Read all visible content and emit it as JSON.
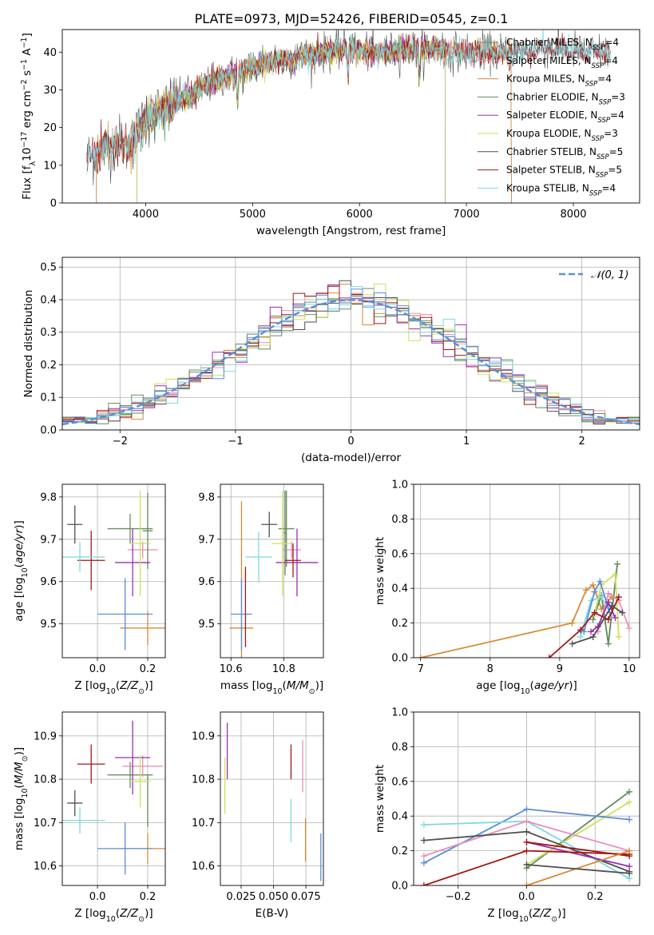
{
  "title": "PLATE=0973, MJD=52426, FIBERID=0545, z=0.1",
  "colors": {
    "Chabrier MILES": "#6b8e62",
    "Salpeter MILES": "#e88fbf",
    "Kroupa MILES": "#d98a33",
    "Chabrier ELODIE": "#5e8a5e",
    "Salpeter ELODIE": "#9b2fb0",
    "Kroupa ELODIE": "#cfe05a",
    "Chabrier STELIB": "#505050",
    "Salpeter STELIB": "#a01818",
    "Kroupa STELIB": "#7fd8df"
  },
  "chart_data": [
    {
      "id": "spectrum",
      "type": "line",
      "title": "PLATE=0973, MJD=52426, FIBERID=0545, z=0.1",
      "xlabel": "wavelength [Angstrom, rest frame]",
      "ylabel": "Flux [f_λ10^-17 erg cm^-2 s^-1 A^-1]",
      "xlim": [
        3220,
        8620
      ],
      "ylim": [
        0,
        46
      ],
      "xticks": [
        "4000",
        "5000",
        "6000",
        "7000",
        "8000"
      ],
      "yticks": [
        "0",
        "10",
        "20",
        "30",
        "40"
      ],
      "grid": false,
      "legend_position": "upper right",
      "spectrum_shape": {
        "x": [
          3450,
          3550,
          3650,
          3750,
          3850,
          3950,
          4050,
          4150,
          4300,
          4500,
          4700,
          4900,
          5100,
          5300,
          5500,
          5700,
          5900,
          6100,
          6300,
          6500,
          6700,
          6900,
          7100,
          7300,
          7500,
          7700,
          7900,
          8100,
          8300
        ],
        "y": [
          12,
          13,
          15,
          16,
          15,
          20,
          23,
          25,
          27,
          30,
          33,
          35,
          37,
          38,
          39,
          40,
          41,
          40,
          40,
          41,
          41,
          40,
          40,
          40,
          40,
          41,
          41,
          40,
          40
        ]
      },
      "series": [
        {
          "name": "Chabrier MILES",
          "label_suffix": "=4",
          "start": 3540,
          "end": 7420
        },
        {
          "name": "Salpeter MILES",
          "label_suffix": "=4",
          "start": 3540,
          "end": 7420
        },
        {
          "name": "Kroupa MILES",
          "label_suffix": "=4",
          "start": 3540,
          "end": 7420
        },
        {
          "name": "Chabrier ELODIE",
          "label_suffix": "=3",
          "start": 3920,
          "end": 6800
        },
        {
          "name": "Salpeter ELODIE",
          "label_suffix": "=4",
          "start": 3920,
          "end": 6800
        },
        {
          "name": "Kroupa ELODIE",
          "label_suffix": "=3",
          "start": 3920,
          "end": 6800
        },
        {
          "name": "Chabrier STELIB",
          "label_suffix": "=5",
          "start": 3450,
          "end": 8350
        },
        {
          "name": "Salpeter STELIB",
          "label_suffix": "=5",
          "start": 3450,
          "end": 8350
        },
        {
          "name": "Kroupa STELIB",
          "label_suffix": "=4",
          "start": 3450,
          "end": 8350
        }
      ]
    },
    {
      "id": "residuals",
      "type": "histogram",
      "xlabel": "(data-model)/error",
      "ylabel": "Normed distribution",
      "xlim": [
        -2.5,
        2.5
      ],
      "ylim": [
        0,
        0.53
      ],
      "xticks": [
        "−2",
        "−1",
        "0",
        "1",
        "2"
      ],
      "yticks": [
        "0.0",
        "0.1",
        "0.2",
        "0.3",
        "0.4",
        "0.5"
      ],
      "grid": true,
      "legend": [
        {
          "name": "𝒩(0, 1)",
          "style": "dashed",
          "color": "#5b8fd6"
        }
      ],
      "bin_width": 0.1,
      "gaussian": {
        "mean": 0,
        "sigma": 1
      }
    },
    {
      "id": "age-vs-Z",
      "type": "errorbar",
      "xlabel": "Z [log10(Z/Z⊙)]",
      "ylabel": "age [log10(age/yr)]",
      "xlim": [
        -0.14,
        0.27
      ],
      "ylim": [
        9.42,
        9.83
      ],
      "xticks": [
        "0.0",
        "0.2"
      ],
      "yticks": [
        "9.5",
        "9.6",
        "9.7",
        "9.8"
      ],
      "points": [
        {
          "name": "Chabrier MILES",
          "x": 0.13,
          "xerr": 0.09,
          "y": 9.725,
          "yerr": 0.035
        },
        {
          "name": "Salpeter MILES",
          "x": 0.18,
          "xerr": 0.06,
          "y": 9.675,
          "yerr": 0.02
        },
        {
          "name": "Kroupa MILES",
          "x": 0.2,
          "xerr": 0.11,
          "y": 9.49,
          "yerr": 0.04
        },
        {
          "name": "Chabrier ELODIE",
          "x": 0.2,
          "xerr": 0.02,
          "y": 9.72,
          "yerr": 0.09
        },
        {
          "name": "Salpeter ELODIE",
          "x": 0.14,
          "xerr": 0.07,
          "y": 9.645,
          "yerr": 0.08
        },
        {
          "name": "Kroupa ELODIE",
          "x": 0.17,
          "xerr": 0.04,
          "y": 9.69,
          "yerr": 0.125
        },
        {
          "name": "Chabrier STELIB",
          "x": -0.09,
          "xerr": 0.03,
          "y": 9.735,
          "yerr": 0.045
        },
        {
          "name": "Salpeter STELIB",
          "x": -0.025,
          "xerr": 0.055,
          "y": 9.65,
          "yerr": 0.07
        },
        {
          "name": "Kroupa STELIB",
          "x": -0.07,
          "xerr": 0.1,
          "y": 9.658,
          "yerr": 0.035
        },
        {
          "name": "blue",
          "x": 0.11,
          "xerr": 0.11,
          "y": 9.523,
          "yerr": 0.085
        }
      ]
    },
    {
      "id": "age-vs-mass",
      "type": "errorbar",
      "xlabel": "mass [log10(M/M⊙)]",
      "ylabel": "",
      "xlim": [
        10.56,
        10.95
      ],
      "ylim": [
        9.42,
        9.83
      ],
      "xticks": [
        "10.6",
        "10.8"
      ],
      "yticks": [
        "9.5",
        "9.6",
        "9.7",
        "9.8"
      ],
      "points": [
        {
          "name": "Chabrier MILES",
          "x": 10.81,
          "xerr": 0.03,
          "y": 9.725,
          "yerr": 0.09
        },
        {
          "name": "Salpeter MILES",
          "x": 10.83,
          "xerr": 0.035,
          "y": 9.675,
          "yerr": 0.02
        },
        {
          "name": "Kroupa MILES",
          "x": 10.64,
          "xerr": 0.045,
          "y": 9.49,
          "yerr": 0.3
        },
        {
          "name": "Chabrier ELODIE",
          "x": 10.805,
          "xerr": 0.005,
          "y": 9.715,
          "yerr": 0.1
        },
        {
          "name": "Salpeter ELODIE",
          "x": 10.85,
          "xerr": 0.08,
          "y": 9.645,
          "yerr": 0.08
        },
        {
          "name": "Kroupa ELODIE",
          "x": 10.795,
          "xerr": 0.04,
          "y": 9.69,
          "yerr": 0.125
        },
        {
          "name": "Chabrier STELIB",
          "x": 10.745,
          "xerr": 0.03,
          "y": 9.735,
          "yerr": 0.03
        },
        {
          "name": "Salpeter STELIB",
          "x": 10.835,
          "xerr": 0.03,
          "y": 9.65,
          "yerr": 0.04
        },
        {
          "name": "Kroupa STELIB",
          "x": 10.705,
          "xerr": 0.05,
          "y": 9.658,
          "yerr": 0.06
        },
        {
          "name": "blue",
          "x": 10.64,
          "xerr": 0.04,
          "y": 9.523,
          "yerr": 0.085
        },
        {
          "name": "Salpeter STELIB",
          "x": 10.655,
          "xerr": 0.0,
          "y": 9.54,
          "yerr": 0.095
        }
      ]
    },
    {
      "id": "weight-vs-age",
      "type": "line",
      "xlabel": "age [log10(age/yr)]",
      "ylabel": "mass weight",
      "xlim": [
        6.9,
        10.15
      ],
      "ylim": [
        0,
        1
      ],
      "xticks": [
        "7",
        "8",
        "9",
        "10"
      ],
      "yticks": [
        "0.0",
        "0.2",
        "0.4",
        "0.6",
        "0.8",
        "1.0"
      ],
      "grid": true,
      "series": [
        {
          "name": "Kroupa MILES",
          "x": [
            7.0,
            9.18,
            9.38,
            9.48,
            9.6,
            9.75
          ],
          "y": [
            0.0,
            0.2,
            0.39,
            0.42,
            0.28,
            0.35
          ]
        },
        {
          "name": "Chabrier ELODIE",
          "x": [
            9.48,
            9.6,
            9.7,
            9.83
          ],
          "y": [
            0.22,
            0.36,
            0.08,
            0.54
          ]
        },
        {
          "name": "Kroupa ELODIE",
          "x": [
            9.5,
            9.6,
            9.8,
            9.85
          ],
          "y": [
            0.25,
            0.42,
            0.48,
            0.12
          ]
        },
        {
          "name": "Salpeter MILES",
          "x": [
            9.55,
            9.7,
            9.85,
            10.0
          ],
          "y": [
            0.15,
            0.37,
            0.33,
            0.17
          ]
        },
        {
          "name": "Kroupa STELIB",
          "x": [
            9.3,
            9.45,
            9.6,
            9.75
          ],
          "y": [
            0.12,
            0.33,
            0.35,
            0.24
          ]
        },
        {
          "name": "blue",
          "x": [
            9.35,
            9.5,
            9.58,
            9.72
          ],
          "y": [
            0.15,
            0.38,
            0.44,
            0.26
          ]
        },
        {
          "name": "Salpeter ELODIE",
          "x": [
            9.45,
            9.55,
            9.7,
            9.8
          ],
          "y": [
            0.15,
            0.18,
            0.32,
            0.23
          ]
        },
        {
          "name": "Salpeter STELIB",
          "x": [
            8.85,
            9.3,
            9.5,
            9.7,
            9.85
          ],
          "y": [
            0.0,
            0.16,
            0.26,
            0.22,
            0.35
          ]
        },
        {
          "name": "Chabrier STELIB",
          "x": [
            9.18,
            9.48,
            9.75,
            9.9
          ],
          "y": [
            0.08,
            0.12,
            0.3,
            0.26
          ]
        }
      ]
    },
    {
      "id": "mass-vs-Z",
      "type": "errorbar",
      "xlabel": "Z [log10(Z/Z⊙)]",
      "ylabel": "mass [log10(M/M⊙)]",
      "xlim": [
        -0.14,
        0.27
      ],
      "ylim": [
        10.555,
        10.955
      ],
      "xticks": [
        "0.0",
        "0.2"
      ],
      "yticks": [
        "10.6",
        "10.7",
        "10.8",
        "10.9"
      ],
      "points": [
        {
          "name": "Chabrier MILES",
          "x": 0.13,
          "xerr": 0.09,
          "y": 10.81,
          "yerr": 0.03
        },
        {
          "name": "Salpeter MILES",
          "x": 0.18,
          "xerr": 0.08,
          "y": 10.83,
          "yerr": 0.025
        },
        {
          "name": "Kroupa MILES",
          "x": 0.2,
          "xerr": 0.11,
          "y": 10.64,
          "yerr": 0.035
        },
        {
          "name": "Chabrier ELODIE",
          "x": 0.2,
          "xerr": 0.0,
          "y": 10.75,
          "yerr": 0.06
        },
        {
          "name": "Salpeter ELODIE",
          "x": 0.14,
          "xerr": 0.07,
          "y": 10.85,
          "yerr": 0.085
        },
        {
          "name": "Kroupa ELODIE",
          "x": 0.17,
          "xerr": 0.04,
          "y": 10.795,
          "yerr": 0.06
        },
        {
          "name": "Chabrier STELIB",
          "x": -0.09,
          "xerr": 0.03,
          "y": 10.745,
          "yerr": 0.03
        },
        {
          "name": "Salpeter STELIB",
          "x": -0.025,
          "xerr": 0.055,
          "y": 10.835,
          "yerr": 0.045
        },
        {
          "name": "Kroupa STELIB",
          "x": -0.07,
          "xerr": 0.1,
          "y": 10.705,
          "yerr": 0.03
        },
        {
          "name": "blue",
          "x": 0.11,
          "xerr": 0.11,
          "y": 10.64,
          "yerr": 0.06
        }
      ]
    },
    {
      "id": "mass-vs-EBV",
      "type": "errorbar",
      "xlabel": "E(B-V)",
      "ylabel": "",
      "xlim": [
        0.009,
        0.0885
      ],
      "ylim": [
        10.555,
        10.955
      ],
      "xticks": [
        "0.025",
        "0.050",
        "0.075"
      ],
      "yticks": [
        "10.6",
        "10.7",
        "10.8",
        "10.9"
      ],
      "points": [
        {
          "name": "Kroupa ELODIE",
          "x": 0.0125,
          "y": 10.785,
          "yerr": 0.065
        },
        {
          "name": "Salpeter ELODIE",
          "x": 0.0143,
          "y": 10.865,
          "yerr": 0.065
        },
        {
          "name": "Salpeter STELIB",
          "x": 0.0635,
          "y": 10.84,
          "yerr": 0.04
        },
        {
          "name": "Kroupa STELIB",
          "x": 0.0635,
          "y": 10.705,
          "yerr": 0.05
        },
        {
          "name": "Salpeter MILES",
          "x": 0.0725,
          "y": 10.83,
          "yerr": 0.06
        },
        {
          "name": "Kroupa MILES",
          "x": 0.0747,
          "y": 10.66,
          "yerr": 0.05
        },
        {
          "name": "blue",
          "x": 0.0865,
          "y": 10.62,
          "yerr": 0.055
        }
      ]
    },
    {
      "id": "weight-vs-Z",
      "type": "line",
      "xlabel": "Z [log10(Z/Z⊙)]",
      "ylabel": "mass weight",
      "xlim": [
        -0.33,
        0.33
      ],
      "ylim": [
        0,
        1
      ],
      "xticks": [
        "−0.2",
        "0.0",
        "0.2"
      ],
      "yticks": [
        "0.0",
        "0.2",
        "0.4",
        "0.6",
        "0.8",
        "1.0"
      ],
      "grid": true,
      "series": [
        {
          "name": "Chabrier ELODIE",
          "x": [
            0.0,
            0.3
          ],
          "y": [
            0.1,
            0.54
          ]
        },
        {
          "name": "Kroupa ELODIE",
          "x": [
            0.0,
            0.3
          ],
          "y": [
            0.12,
            0.48
          ]
        },
        {
          "name": "blue",
          "x": [
            -0.3,
            0.0,
            0.3
          ],
          "y": [
            0.13,
            0.44,
            0.38
          ]
        },
        {
          "name": "Kroupa STELIB",
          "x": [
            -0.3,
            0.0,
            0.3
          ],
          "y": [
            0.35,
            0.37,
            0.04
          ]
        },
        {
          "name": "Salpeter MILES",
          "x": [
            -0.3,
            0.0,
            0.3
          ],
          "y": [
            0.17,
            0.37,
            0.2
          ]
        },
        {
          "name": "Chabrier STELIB",
          "x": [
            -0.3,
            0.0,
            0.3
          ],
          "y": [
            0.26,
            0.31,
            0.08
          ]
        },
        {
          "name": "Salpeter ELODIE",
          "x": [
            0.0,
            0.3
          ],
          "y": [
            0.25,
            0.11
          ]
        },
        {
          "name": "Salpeter STELIB",
          "x": [
            -0.3,
            0.0,
            0.3
          ],
          "y": [
            0.0,
            0.2,
            0.18
          ]
        },
        {
          "name": "Salpeter STELIB",
          "x": [
            0.0,
            0.3
          ],
          "y": [
            0.25,
            0.17
          ]
        },
        {
          "name": "Kroupa MILES",
          "x": [
            0.0,
            0.3
          ],
          "y": [
            0.0,
            0.2
          ]
        },
        {
          "name": "Chabrier STELIB",
          "x": [
            0.0,
            0.3
          ],
          "y": [
            0.12,
            0.07
          ]
        }
      ]
    }
  ]
}
